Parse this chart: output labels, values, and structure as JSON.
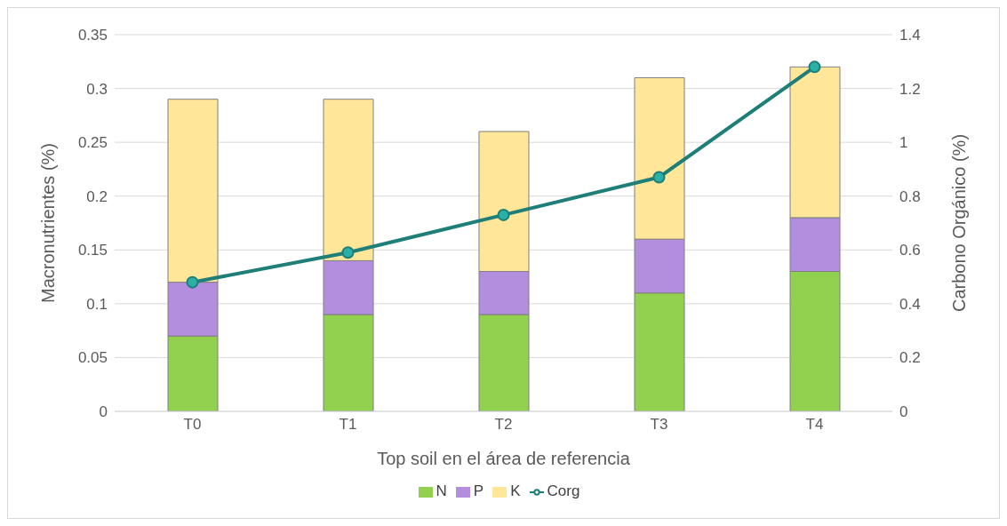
{
  "chart_data": {
    "type": "bar",
    "stacked": true,
    "xlabel": "Top soil en el área de referencia",
    "ylabel": "Macronutrientes (%)",
    "y2label": "Carbono Orgánico (%)",
    "categories": [
      "T0",
      "T1",
      "T2",
      "T3",
      "T4"
    ],
    "series": [
      {
        "name": "N",
        "color": "#92d050",
        "values": [
          0.07,
          0.09,
          0.09,
          0.11,
          0.13
        ]
      },
      {
        "name": "P",
        "color": "#b48ede",
        "values": [
          0.05,
          0.05,
          0.04,
          0.05,
          0.05
        ]
      },
      {
        "name": "K",
        "color": "#ffe699",
        "values": [
          0.17,
          0.15,
          0.13,
          0.15,
          0.14
        ]
      },
      {
        "name": "Corg",
        "type": "line",
        "axis": "y2",
        "color": "#1e7f78",
        "marker": "circle",
        "values": [
          0.48,
          0.59,
          0.73,
          0.87,
          1.28
        ]
      }
    ],
    "ylim": [
      0,
      0.35
    ],
    "yticks": [
      0,
      0.05,
      0.1,
      0.15,
      0.2,
      0.25,
      0.3,
      0.35
    ],
    "y2lim": [
      0,
      1.4
    ],
    "y2ticks": [
      0,
      0.2,
      0.4,
      0.6,
      0.8,
      1,
      1.2,
      1.4
    ],
    "grid": "y",
    "legend": "bottom"
  }
}
